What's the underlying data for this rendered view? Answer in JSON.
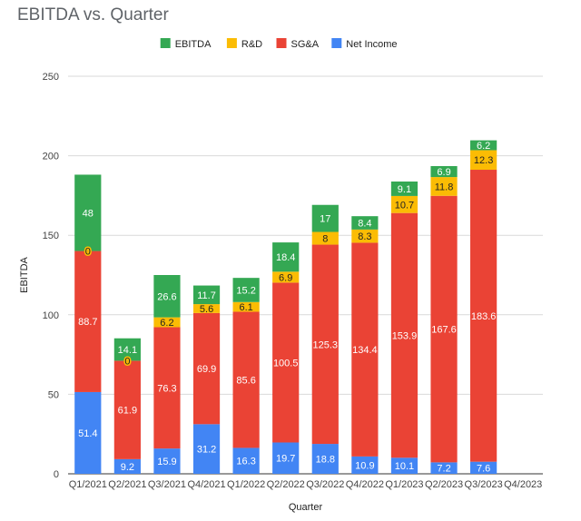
{
  "chart_data": {
    "type": "bar",
    "stacked": true,
    "title": "EBITDA vs. Quarter",
    "xlabel": "Quarter",
    "ylabel": "EBITDA",
    "ylim": [
      0,
      250
    ],
    "yticks": [
      0,
      50,
      100,
      150,
      200,
      250
    ],
    "grid": true,
    "legend_position": "top-center",
    "categories": [
      "Q1/2021",
      "Q2/2021",
      "Q3/2021",
      "Q4/2021",
      "Q1/2022",
      "Q2/2022",
      "Q3/2022",
      "Q4/2022",
      "Q1/2023",
      "Q2/2023",
      "Q3/2023",
      "Q4/2023"
    ],
    "legend_order": [
      "EBITDA",
      "R&D",
      "SG&A",
      "Net Income"
    ],
    "series": [
      {
        "name": "Net Income",
        "color": "#4285f4",
        "label_color": "#ffffff",
        "values": [
          51.4,
          9.2,
          15.9,
          31.2,
          16.3,
          19.7,
          18.8,
          10.9,
          10.1,
          7.2,
          7.6,
          null
        ]
      },
      {
        "name": "SG&A",
        "color": "#ea4335",
        "label_color": "#ffffff",
        "values": [
          88.7,
          61.9,
          76.3,
          69.9,
          85.6,
          100.5,
          125.3,
          134.4,
          153.9,
          167.6,
          183.6,
          null
        ]
      },
      {
        "name": "R&D",
        "color": "#fbbc04",
        "label_color": "#222222",
        "values": [
          0,
          0,
          6.2,
          5.6,
          6.1,
          6.9,
          8,
          8.3,
          10.7,
          11.8,
          12.3,
          null
        ]
      },
      {
        "name": "EBITDA",
        "color": "#34a853",
        "label_color": "#ffffff",
        "values": [
          48,
          14.1,
          26.6,
          11.7,
          15.2,
          18.4,
          17,
          8.4,
          9.1,
          6.9,
          6.2,
          null
        ]
      }
    ]
  }
}
